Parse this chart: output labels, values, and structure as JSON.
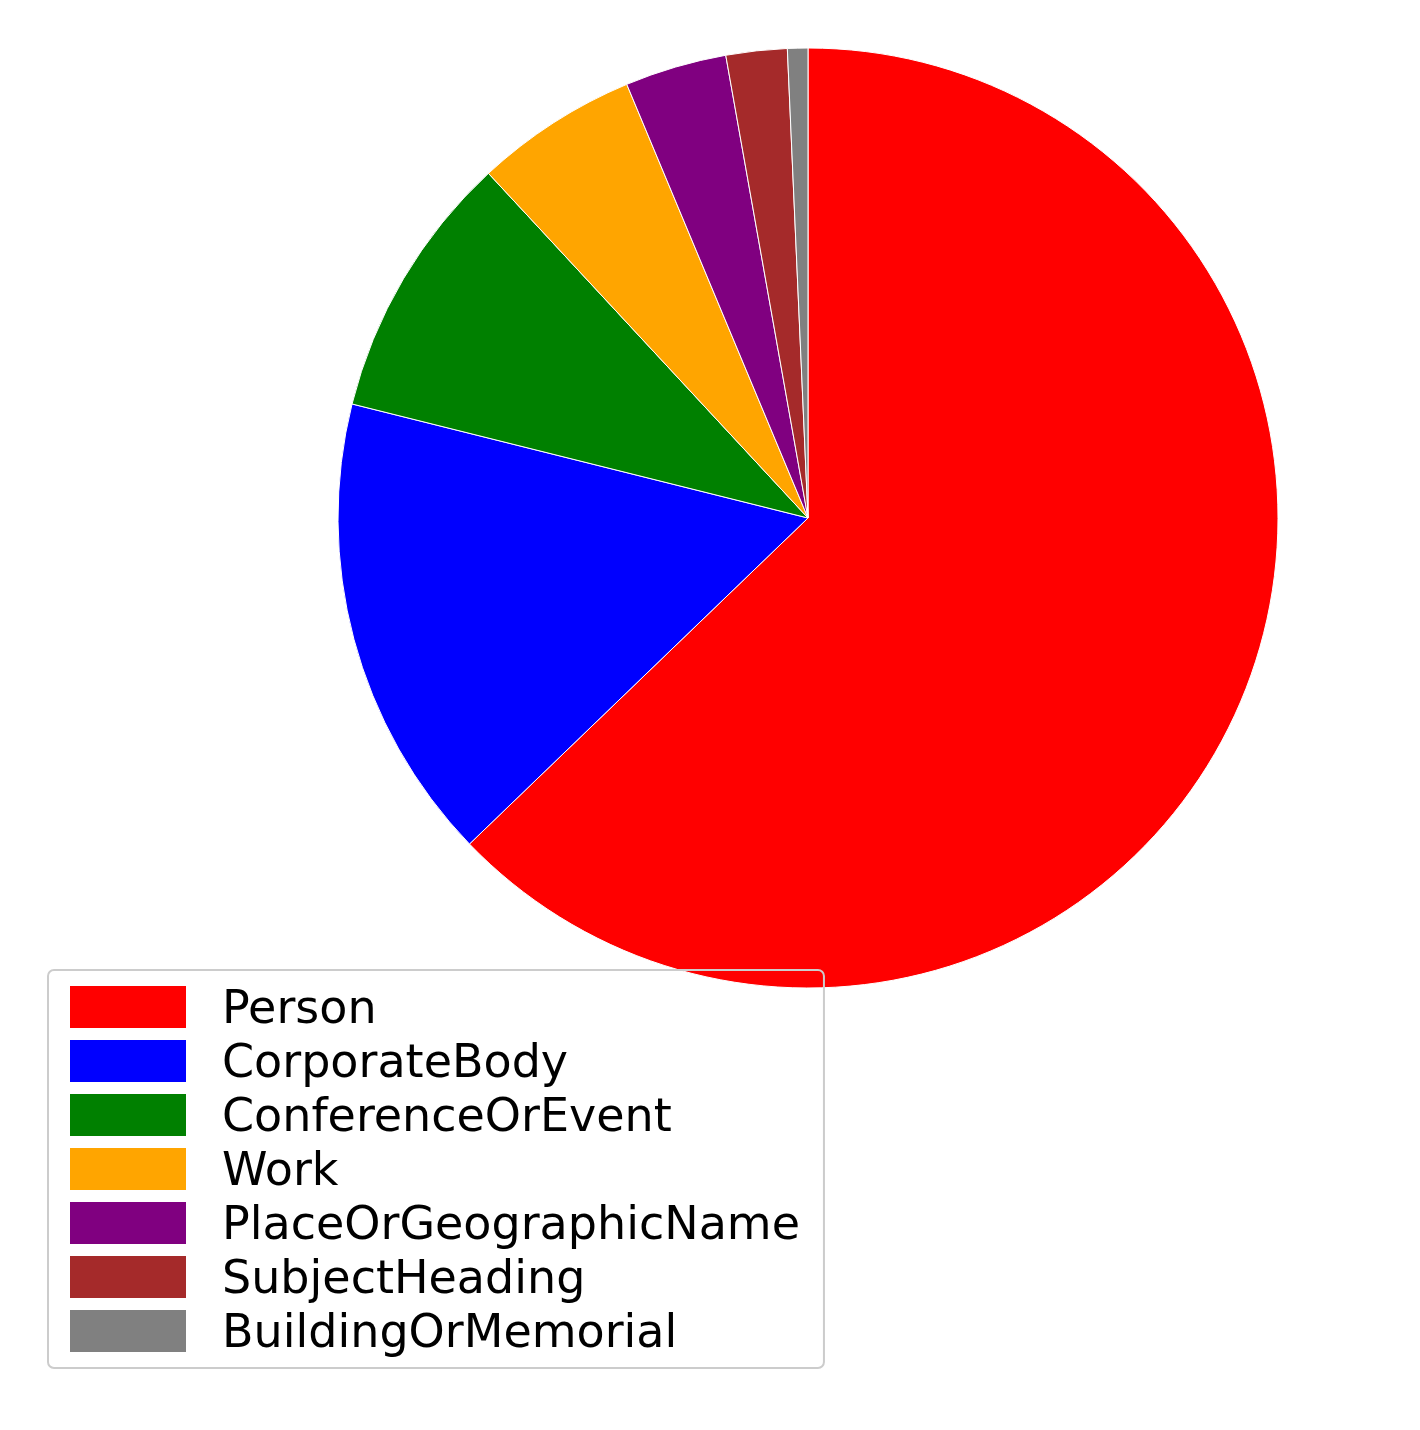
{
  "chart_data": {
    "type": "pie",
    "categories": [
      "Person",
      "CorporateBody",
      "ConferenceOrEvent",
      "Work",
      "PlaceOrGeographicName",
      "SubjectHeading",
      "BuildingOrMemorial"
    ],
    "values": [
      62.8,
      16.1,
      9.2,
      5.6,
      3.5,
      2.1,
      0.7
    ],
    "colors": [
      "#ff0000",
      "#0000ff",
      "#008000",
      "#ffa500",
      "#800080",
      "#a52a2a",
      "#808080"
    ],
    "legend": "bottom left"
  }
}
